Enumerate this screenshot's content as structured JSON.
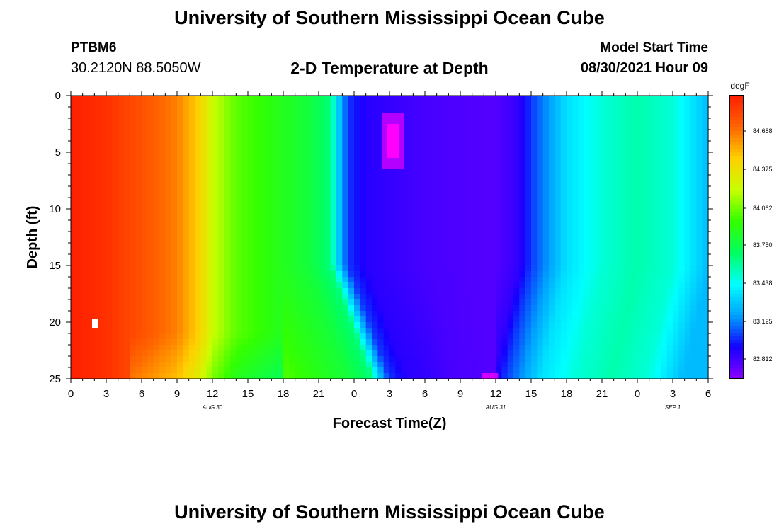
{
  "header": {
    "title": "University of Southern Mississippi Ocean Cube",
    "footer_title": "University of Southern Mississippi Ocean Cube",
    "station_id": "PTBM6",
    "coordinates": "30.2120N  88.5050W",
    "plot_title": "2-D Temperature at Depth",
    "model_start_label": "Model Start Time",
    "model_start_value": "08/30/2021 Hour 09"
  },
  "chart_data": {
    "type": "heatmap",
    "title": "2-D Temperature at Depth",
    "xlabel": "Forecast Time(Z)",
    "ylabel": "Depth (ft)",
    "x_hours_from_aug30_00z": [
      0,
      54
    ],
    "x_ticks": [
      "0",
      "3",
      "6",
      "9",
      "12",
      "15",
      "18",
      "21",
      "0",
      "3",
      "6",
      "9",
      "12",
      "15",
      "18",
      "21",
      "0",
      "3",
      "6"
    ],
    "date_labels": [
      "AUG 30",
      "AUG 31",
      "SEP 1"
    ],
    "ylim": [
      0,
      25
    ],
    "y_ticks": [
      "0",
      "5",
      "10",
      "15",
      "20",
      "25"
    ],
    "colorbar": {
      "unit": "degF",
      "tick_labels": [
        "84.688",
        "84.375",
        "84.062",
        "83.750",
        "83.438",
        "83.125",
        "82.812"
      ],
      "range": [
        82.6,
        84.95
      ],
      "colors": [
        "#8b00ff",
        "#1400ff",
        "#00a0ff",
        "#00ffff",
        "#00ff60",
        "#33ff00",
        "#c8ff00",
        "#ffd000",
        "#ff6400",
        "#ff1e00"
      ]
    },
    "surface_profile_degF": [
      {
        "hour": 0,
        "value": 84.95
      },
      {
        "hour": 3,
        "value": 84.88
      },
      {
        "hour": 6,
        "value": 84.76
      },
      {
        "hour": 9,
        "value": 84.62
      },
      {
        "hour": 11,
        "value": 84.4
      },
      {
        "hour": 12,
        "value": 84.18
      },
      {
        "hour": 14,
        "value": 83.98
      },
      {
        "hour": 17,
        "value": 83.86
      },
      {
        "hour": 20,
        "value": 83.75
      },
      {
        "hour": 22,
        "value": 83.6
      },
      {
        "hour": 22.8,
        "value": 83.2
      },
      {
        "hour": 23.5,
        "value": 82.95
      },
      {
        "hour": 25,
        "value": 82.82
      },
      {
        "hour": 30,
        "value": 82.75
      },
      {
        "hour": 36,
        "value": 82.72
      },
      {
        "hour": 38,
        "value": 82.8
      },
      {
        "hour": 39,
        "value": 82.95
      },
      {
        "hour": 40.5,
        "value": 83.12
      },
      {
        "hour": 42,
        "value": 83.3
      },
      {
        "hour": 45,
        "value": 83.45
      },
      {
        "hour": 48,
        "value": 83.52
      },
      {
        "hour": 51,
        "value": 83.45
      },
      {
        "hour": 54,
        "value": 83.2
      }
    ]
  }
}
